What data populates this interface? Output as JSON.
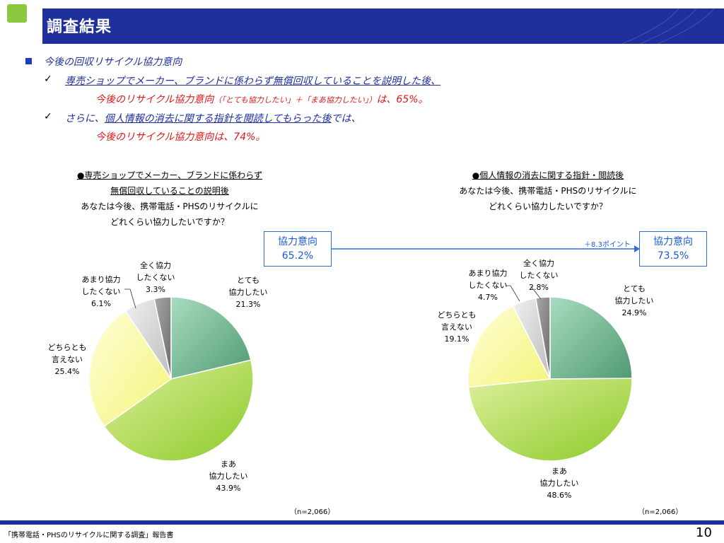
{
  "header": {
    "title": "調査結果"
  },
  "summary": {
    "heading": "今後の回収リサイクル協力意向",
    "check_mark": "✓",
    "point1_line1": "専売ショップでメーカー、ブランドに係わらず無償回収していることを説明した後、",
    "point1_line2_main": "今後のリサイクル協力意向",
    "point1_line2_small": "（「とても協力したい」＋「まあ協力したい」）",
    "point1_line2_end": "は、65%。",
    "point2_prefix": "さらに、",
    "point2_underlined": "個人情報の消去に関する指針を閲読してもらった後",
    "point2_suffix": "では、",
    "point2_line2": "今後のリサイクル協力意向は、74%。"
  },
  "chart_left": {
    "heading_line1": "●専売ショップでメーカー、ブランドに係わらず",
    "heading_line2": "無償回収していることの説明後",
    "question_line1": "あなたは今後、携帯電話・PHSのリサイクルに",
    "question_line2": "どれくらい協力したいですか？",
    "box_label": "協力意向",
    "box_value": "65.2%",
    "n_note": "（n=2,066）",
    "labels": [
      {
        "name": "とても\n協力したい",
        "value": "21.3%"
      },
      {
        "name": "まあ\n協力したい",
        "value": "43.9%"
      },
      {
        "name": "どちらとも\n言えない",
        "value": "25.4%"
      },
      {
        "name": "あまり協力\nしたくない",
        "value": "6.1%"
      },
      {
        "name": "全く協力\nしたくない",
        "value": "3.3%"
      }
    ]
  },
  "chart_right": {
    "heading_line1": "●個人情報の消去に関する指針・閲読後",
    "question_line1": "あなたは今後、携帯電話・PHSのリサイクルに",
    "question_line2": "どれくらい協力したいですか？",
    "box_label": "協力意向",
    "box_value": "73.5%",
    "n_note": "（n=2,066）",
    "labels": [
      {
        "name": "とても\n協力したい",
        "value": "24.9%"
      },
      {
        "name": "まあ\n協力したい",
        "value": "48.6%"
      },
      {
        "name": "どちらとも\n言えない",
        "value": "19.1%"
      },
      {
        "name": "あまり協力\nしたくない",
        "value": "4.7%"
      },
      {
        "name": "全く協力\nしたくない",
        "value": "2.8%"
      }
    ]
  },
  "arrow_label": "＋8.3ポイント",
  "footer": {
    "text": "「携帯電話・PHSのリサイクルに関する調査」報告書",
    "page": "10"
  },
  "chart_data": [
    {
      "type": "pie",
      "title": "●専売ショップでメーカー、ブランドに係わらず 無償回収していることの説明後",
      "categories": [
        "とても協力したい",
        "まあ協力したい",
        "どちらとも言えない",
        "あまり協力したくない",
        "全く協力したくない"
      ],
      "values": [
        21.3,
        43.9,
        25.4,
        6.1,
        3.3
      ],
      "colors": [
        "#6aae8a",
        "#a8d245",
        "#fbfb9c",
        "#d8d8d8",
        "#8a8a8a"
      ]
    },
    {
      "type": "pie",
      "title": "●個人情報の消去に関する指針・閲読後",
      "categories": [
        "とても協力したい",
        "まあ協力したい",
        "どちらとも言えない",
        "あまり協力したくない",
        "全く協力したくない"
      ],
      "values": [
        24.9,
        48.6,
        19.1,
        4.7,
        2.8
      ],
      "colors": [
        "#6aae8a",
        "#a8d245",
        "#fbfb9c",
        "#d8d8d8",
        "#8a8a8a"
      ]
    }
  ]
}
